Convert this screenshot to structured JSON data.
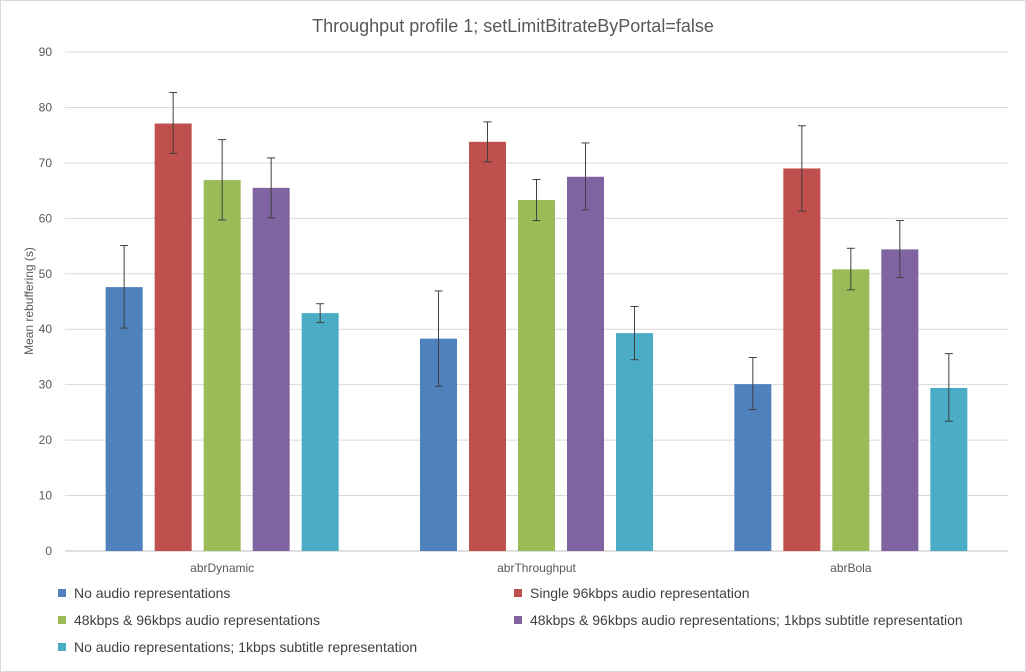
{
  "chart_data": {
    "type": "bar",
    "title": "Throughput profile 1; setLimitBitrateByPortal=false",
    "xlabel": "",
    "ylabel": "Mean rebuffering (s)",
    "ylim": [
      0,
      90
    ],
    "yticks": [
      0,
      10,
      20,
      30,
      40,
      50,
      60,
      70,
      80,
      90
    ],
    "grid": true,
    "legend_position": "bottom",
    "categories": [
      "abrDynamic",
      "abrThroughput",
      "abrBola"
    ],
    "series": [
      {
        "name": "No audio representations",
        "color": "#4f81bd",
        "values": [
          47.6,
          38.3,
          30.1
        ],
        "err_low": [
          40.2,
          29.7,
          25.5
        ],
        "err_high": [
          55.1,
          46.9,
          34.9
        ]
      },
      {
        "name": "Single 96kbps audio representation",
        "color": "#c0504d",
        "values": [
          77.1,
          73.8,
          69.0
        ],
        "err_low": [
          71.7,
          70.2,
          61.3
        ],
        "err_high": [
          82.7,
          77.4,
          76.7
        ]
      },
      {
        "name": "48kbps & 96kbps audio representations",
        "color": "#9bbb59",
        "values": [
          66.9,
          63.3,
          50.8
        ],
        "err_low": [
          59.7,
          59.6,
          47.1
        ],
        "err_high": [
          74.2,
          67.0,
          54.6
        ]
      },
      {
        "name": "48kbps & 96kbps audio representations; 1kbps subtitle representation",
        "color": "#8064a2",
        "values": [
          65.5,
          67.5,
          54.4
        ],
        "err_low": [
          60.1,
          61.5,
          49.3
        ],
        "err_high": [
          70.9,
          73.6,
          59.6
        ]
      },
      {
        "name": "No audio representations; 1kbps subtitle representation",
        "color": "#4bacc6",
        "values": [
          42.9,
          39.3,
          29.4
        ],
        "err_low": [
          41.2,
          34.5,
          23.4
        ],
        "err_high": [
          44.6,
          44.1,
          35.6
        ]
      }
    ]
  }
}
